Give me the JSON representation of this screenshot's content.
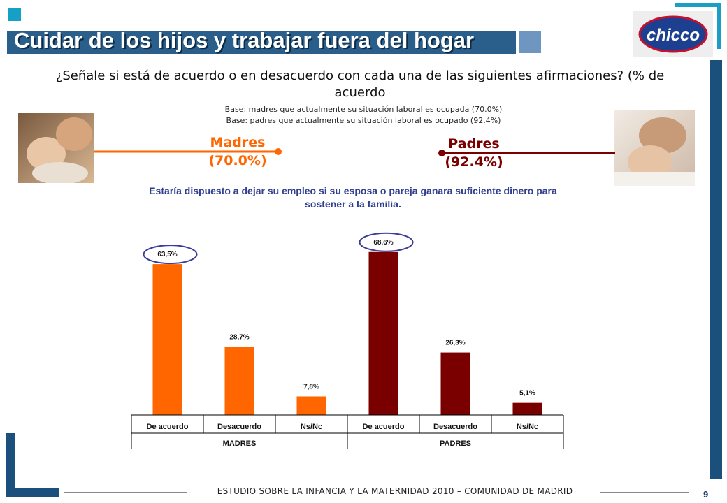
{
  "slide": {
    "title": "Cuidar de los hijos y trabajar fuera del hogar",
    "question": "¿Señale si está de acuerdo o en desacuerdo con cada una de las siguientes afirmaciones? (% de acuerdo",
    "base_madres": "Base: madres que actualmente  su situación laboral es ocupada (70.0%)",
    "base_padres": "Base: padres que actualmente  su situación laboral es ocupado (92.4%)",
    "madres_label": "Madres",
    "madres_pct": "(70.0%)",
    "padres_label": "Padres",
    "padres_pct": "(92.4%)",
    "statement": "Estaría dispuesto a dejar su empleo si su esposa o pareja ganara suficiente dinero para sostener a la familia.",
    "footer": "ESTUDIO  SOBRE  LA  INFANCIA  Y  LA  MATERNIDAD  2010  –  COMUNIDAD  DE  MADRID",
    "page_number": "9",
    "logo_text": "chicco"
  },
  "colors": {
    "madres": "#ff6600",
    "padres": "#7a0000",
    "accent_blue": "#2a5f8c",
    "dark_blue": "#1b4f7c",
    "ellipse": "#3b3b9a"
  },
  "chart_data": {
    "type": "bar",
    "groups": [
      "MADRES",
      "PADRES"
    ],
    "categories": [
      "De acuerdo",
      "Desacuerdo",
      "Ns/Nc",
      "De acuerdo",
      "Desacuerdo",
      "Ns/Nc"
    ],
    "values": [
      63.5,
      28.7,
      7.8,
      68.6,
      26.3,
      5.1
    ],
    "labels": [
      "63,5%",
      "28,7%",
      "7,8%",
      "68,6%",
      "26,3%",
      "5,1%"
    ],
    "highlighted": [
      true,
      false,
      false,
      true,
      false,
      false
    ],
    "series_group": [
      0,
      0,
      0,
      1,
      1,
      1
    ]
  }
}
